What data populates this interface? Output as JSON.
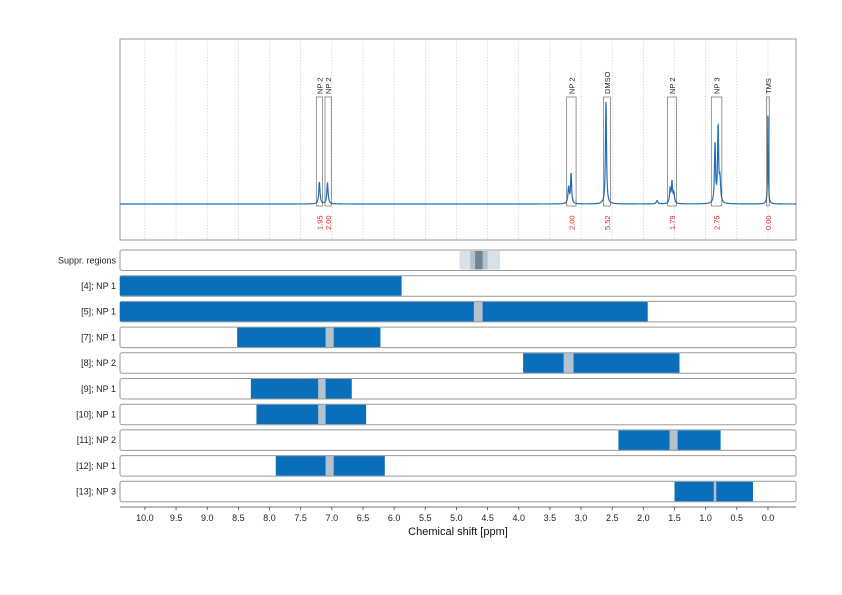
{
  "colors": {
    "spectrum": "#1f6fb4",
    "range_fill": "#0a6fba",
    "suppression_dark": "#6f8494",
    "suppression_mid": "#b3c2cf",
    "suppression_light": "#d8e0e8",
    "integral_text": "#e0211f",
    "frame": "#9a9a9a",
    "grid": "#c8c8c8"
  },
  "chart_data": {
    "type": "nmr-spectrum-with-ranges",
    "xlabel": "Chemical shift [ppm]",
    "xlim": [
      10.4,
      -0.45
    ],
    "x_reversed": true,
    "x_ticks": [
      10.0,
      9.5,
      9.0,
      8.5,
      8.0,
      7.5,
      7.0,
      6.5,
      6.0,
      5.5,
      5.0,
      4.5,
      4.0,
      3.5,
      3.0,
      2.5,
      2.0,
      1.5,
      1.0,
      0.5,
      0.0
    ],
    "x_tick_labels": [
      "10.0",
      "9.5",
      "9.0",
      "8.5",
      "8.0",
      "7.5",
      "7.0",
      "6.5",
      "6.0",
      "5.5",
      "5.0",
      "4.5",
      "4.0",
      "3.5",
      "3.0",
      "2.5",
      "2.0",
      "1.5",
      "1.0",
      "0.5",
      "0.0"
    ],
    "grid": true,
    "spectrum": {
      "baseline": 0.0,
      "peaks": [
        {
          "shift": 7.2,
          "height": 0.2,
          "width": 0.012
        },
        {
          "shift": 7.07,
          "height": 0.19,
          "width": 0.012
        },
        {
          "shift": 3.2,
          "height": 0.15,
          "width": 0.012
        },
        {
          "shift": 3.16,
          "height": 0.28,
          "width": 0.01
        },
        {
          "shift": 2.6,
          "height": 0.95,
          "width": 0.01
        },
        {
          "shift": 1.57,
          "height": 0.13,
          "width": 0.012
        },
        {
          "shift": 1.54,
          "height": 0.19,
          "width": 0.01
        },
        {
          "shift": 1.51,
          "height": 0.09,
          "width": 0.012
        },
        {
          "shift": 1.78,
          "height": 0.03,
          "width": 0.015
        },
        {
          "shift": 0.85,
          "height": 0.55,
          "width": 0.01
        },
        {
          "shift": 0.8,
          "height": 0.7,
          "width": 0.01
        },
        {
          "shift": 0.77,
          "height": 0.2,
          "width": 0.012
        }
      ],
      "annotations": [
        {
          "label": "NP 2",
          "from": 7.25,
          "to": 7.15,
          "integral": "1.95"
        },
        {
          "label": "NP 2",
          "from": 7.11,
          "to": 7.01,
          "integral": "2.00"
        },
        {
          "label": "NP 2",
          "from": 3.23,
          "to": 3.08,
          "integral": "2.00"
        },
        {
          "label": "DMSO",
          "from": 2.64,
          "to": 2.53,
          "integral": "5.52"
        },
        {
          "label": "NP 2",
          "from": 1.61,
          "to": 1.47,
          "integral": "1.79"
        },
        {
          "label": "NP 3",
          "from": 0.91,
          "to": 0.74,
          "integral": "2.75"
        },
        {
          "label": "TMS",
          "from": 0.02,
          "to": -0.02,
          "integral": "0.00"
        }
      ]
    },
    "suppression": {
      "label": "Suppr. regions",
      "bands": [
        {
          "from": 4.95,
          "to": 4.3,
          "level": "light"
        },
        {
          "from": 4.78,
          "to": 4.5,
          "level": "mid"
        },
        {
          "from": 4.7,
          "to": 4.58,
          "level": "dark"
        }
      ]
    },
    "ranges": [
      {
        "label": "[4]; NP 1",
        "from": 10.4,
        "to": 5.88,
        "gaps": []
      },
      {
        "label": "[5]; NP 1",
        "from": 10.4,
        "to": 1.93,
        "gaps": [
          [
            4.72,
            4.58
          ]
        ]
      },
      {
        "label": "[7]; NP 1",
        "from": 8.52,
        "to": 6.22,
        "gaps": [
          [
            7.1,
            6.97
          ]
        ]
      },
      {
        "label": "[8]; NP 2",
        "from": 3.93,
        "to": 1.42,
        "gaps": [
          [
            3.28,
            3.12
          ]
        ]
      },
      {
        "label": "[9]; NP 1",
        "from": 8.3,
        "to": 6.68,
        "gaps": [
          [
            7.22,
            7.1
          ]
        ]
      },
      {
        "label": "[10]; NP 1",
        "from": 8.21,
        "to": 6.45,
        "gaps": [
          [
            7.22,
            7.1
          ]
        ]
      },
      {
        "label": "[11]; NP 2",
        "from": 2.4,
        "to": 0.76,
        "gaps": [
          [
            1.58,
            1.45
          ]
        ]
      },
      {
        "label": "[12]; NP 1",
        "from": 7.9,
        "to": 6.15,
        "gaps": [
          [
            7.1,
            6.97
          ]
        ]
      },
      {
        "label": "[13]; NP 3",
        "from": 1.5,
        "to": 0.24,
        "gaps": [
          [
            0.87,
            0.83
          ]
        ]
      }
    ]
  }
}
